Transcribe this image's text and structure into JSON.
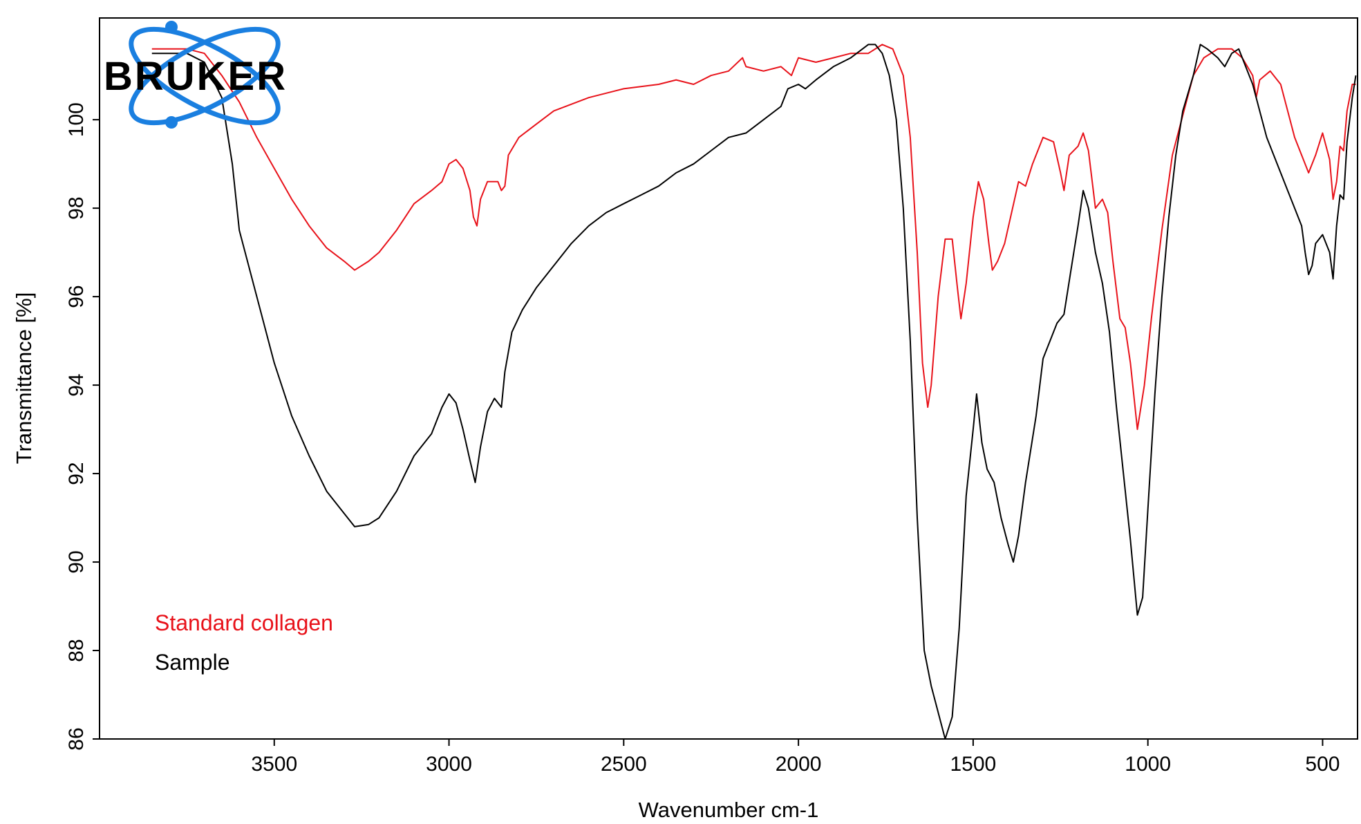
{
  "chart_data": {
    "type": "line",
    "xlabel": "Wavenumber cm-1",
    "ylabel": "Transmittance [%]",
    "xlim": [
      4000,
      400
    ],
    "x_reversed": true,
    "ylim": [
      86,
      102.3
    ],
    "x_ticks": [
      3500,
      3000,
      2500,
      2000,
      1500,
      1000,
      500
    ],
    "y_ticks": [
      86,
      88,
      90,
      92,
      94,
      96,
      98,
      100
    ],
    "grid": false,
    "legend_placement": "bottom-left",
    "colors": {
      "standard": "#e8121a",
      "sample": "#000000",
      "logo": "#1a7fe0"
    },
    "logo_text": "BRUKER",
    "series": [
      {
        "name": "Standard collagen",
        "color": "#e8121a",
        "points": [
          [
            3850,
            101.6
          ],
          [
            3750,
            101.6
          ],
          [
            3700,
            101.5
          ],
          [
            3650,
            101.0
          ],
          [
            3600,
            100.4
          ],
          [
            3550,
            99.6
          ],
          [
            3500,
            98.9
          ],
          [
            3450,
            98.2
          ],
          [
            3400,
            97.6
          ],
          [
            3350,
            97.1
          ],
          [
            3300,
            96.8
          ],
          [
            3270,
            96.6
          ],
          [
            3230,
            96.8
          ],
          [
            3200,
            97.0
          ],
          [
            3150,
            97.5
          ],
          [
            3100,
            98.1
          ],
          [
            3050,
            98.4
          ],
          [
            3020,
            98.6
          ],
          [
            3000,
            99.0
          ],
          [
            2980,
            99.1
          ],
          [
            2960,
            98.9
          ],
          [
            2940,
            98.4
          ],
          [
            2930,
            97.8
          ],
          [
            2920,
            97.6
          ],
          [
            2910,
            98.2
          ],
          [
            2890,
            98.6
          ],
          [
            2860,
            98.6
          ],
          [
            2850,
            98.4
          ],
          [
            2840,
            98.5
          ],
          [
            2830,
            99.2
          ],
          [
            2800,
            99.6
          ],
          [
            2750,
            99.9
          ],
          [
            2700,
            100.2
          ],
          [
            2600,
            100.5
          ],
          [
            2500,
            100.7
          ],
          [
            2400,
            100.8
          ],
          [
            2350,
            100.9
          ],
          [
            2300,
            100.8
          ],
          [
            2250,
            101.0
          ],
          [
            2200,
            101.1
          ],
          [
            2160,
            101.4
          ],
          [
            2150,
            101.2
          ],
          [
            2100,
            101.1
          ],
          [
            2050,
            101.2
          ],
          [
            2020,
            101.0
          ],
          [
            2000,
            101.4
          ],
          [
            1950,
            101.3
          ],
          [
            1900,
            101.4
          ],
          [
            1850,
            101.5
          ],
          [
            1800,
            101.5
          ],
          [
            1760,
            101.7
          ],
          [
            1730,
            101.6
          ],
          [
            1700,
            101.0
          ],
          [
            1680,
            99.6
          ],
          [
            1660,
            97.0
          ],
          [
            1645,
            94.5
          ],
          [
            1630,
            93.5
          ],
          [
            1620,
            94.0
          ],
          [
            1600,
            96.0
          ],
          [
            1580,
            97.3
          ],
          [
            1560,
            97.3
          ],
          [
            1545,
            96.2
          ],
          [
            1535,
            95.5
          ],
          [
            1520,
            96.3
          ],
          [
            1500,
            97.8
          ],
          [
            1485,
            98.6
          ],
          [
            1470,
            98.2
          ],
          [
            1455,
            97.2
          ],
          [
            1445,
            96.6
          ],
          [
            1430,
            96.8
          ],
          [
            1410,
            97.2
          ],
          [
            1390,
            97.9
          ],
          [
            1370,
            98.6
          ],
          [
            1350,
            98.5
          ],
          [
            1330,
            99.0
          ],
          [
            1300,
            99.6
          ],
          [
            1270,
            99.5
          ],
          [
            1250,
            98.8
          ],
          [
            1240,
            98.4
          ],
          [
            1225,
            99.2
          ],
          [
            1200,
            99.4
          ],
          [
            1185,
            99.7
          ],
          [
            1170,
            99.3
          ],
          [
            1150,
            98.0
          ],
          [
            1130,
            98.2
          ],
          [
            1115,
            97.9
          ],
          [
            1100,
            96.8
          ],
          [
            1080,
            95.5
          ],
          [
            1065,
            95.3
          ],
          [
            1050,
            94.5
          ],
          [
            1030,
            93.0
          ],
          [
            1010,
            94.0
          ],
          [
            990,
            95.5
          ],
          [
            960,
            97.5
          ],
          [
            930,
            99.2
          ],
          [
            900,
            100.1
          ],
          [
            870,
            101.0
          ],
          [
            840,
            101.4
          ],
          [
            800,
            101.6
          ],
          [
            760,
            101.6
          ],
          [
            730,
            101.4
          ],
          [
            700,
            101.0
          ],
          [
            690,
            100.5
          ],
          [
            680,
            100.9
          ],
          [
            650,
            101.1
          ],
          [
            620,
            100.8
          ],
          [
            600,
            100.2
          ],
          [
            580,
            99.6
          ],
          [
            560,
            99.2
          ],
          [
            540,
            98.8
          ],
          [
            520,
            99.2
          ],
          [
            500,
            99.7
          ],
          [
            480,
            99.1
          ],
          [
            470,
            98.2
          ],
          [
            460,
            98.6
          ],
          [
            450,
            99.4
          ],
          [
            440,
            99.3
          ],
          [
            430,
            100.2
          ],
          [
            415,
            100.8
          ],
          [
            405,
            100.8
          ]
        ]
      },
      {
        "name": "Sample",
        "color": "#000000",
        "points": [
          [
            3850,
            101.5
          ],
          [
            3750,
            101.5
          ],
          [
            3700,
            101.3
          ],
          [
            3650,
            100.5
          ],
          [
            3620,
            99.0
          ],
          [
            3600,
            97.5
          ],
          [
            3550,
            96.0
          ],
          [
            3500,
            94.5
          ],
          [
            3450,
            93.3
          ],
          [
            3400,
            92.4
          ],
          [
            3350,
            91.6
          ],
          [
            3300,
            91.1
          ],
          [
            3270,
            90.8
          ],
          [
            3230,
            90.85
          ],
          [
            3200,
            91.0
          ],
          [
            3150,
            91.6
          ],
          [
            3100,
            92.4
          ],
          [
            3050,
            92.9
          ],
          [
            3020,
            93.5
          ],
          [
            3000,
            93.8
          ],
          [
            2980,
            93.6
          ],
          [
            2960,
            93.0
          ],
          [
            2940,
            92.3
          ],
          [
            2925,
            91.8
          ],
          [
            2910,
            92.6
          ],
          [
            2890,
            93.4
          ],
          [
            2870,
            93.7
          ],
          [
            2850,
            93.5
          ],
          [
            2840,
            94.3
          ],
          [
            2820,
            95.2
          ],
          [
            2790,
            95.7
          ],
          [
            2750,
            96.2
          ],
          [
            2700,
            96.7
          ],
          [
            2650,
            97.2
          ],
          [
            2600,
            97.6
          ],
          [
            2550,
            97.9
          ],
          [
            2500,
            98.1
          ],
          [
            2450,
            98.3
          ],
          [
            2400,
            98.5
          ],
          [
            2350,
            98.8
          ],
          [
            2300,
            99.0
          ],
          [
            2250,
            99.3
          ],
          [
            2200,
            99.6
          ],
          [
            2150,
            99.7
          ],
          [
            2100,
            100.0
          ],
          [
            2050,
            100.3
          ],
          [
            2030,
            100.7
          ],
          [
            2000,
            100.8
          ],
          [
            1980,
            100.7
          ],
          [
            1950,
            100.9
          ],
          [
            1900,
            101.2
          ],
          [
            1850,
            101.4
          ],
          [
            1800,
            101.7
          ],
          [
            1780,
            101.7
          ],
          [
            1760,
            101.5
          ],
          [
            1740,
            101.0
          ],
          [
            1720,
            100.0
          ],
          [
            1700,
            98.0
          ],
          [
            1680,
            95.0
          ],
          [
            1660,
            91.0
          ],
          [
            1640,
            88.0
          ],
          [
            1620,
            87.2
          ],
          [
            1600,
            86.6
          ],
          [
            1580,
            86.0
          ],
          [
            1560,
            86.5
          ],
          [
            1540,
            88.5
          ],
          [
            1520,
            91.5
          ],
          [
            1500,
            93.0
          ],
          [
            1490,
            93.8
          ],
          [
            1475,
            92.7
          ],
          [
            1460,
            92.1
          ],
          [
            1440,
            91.8
          ],
          [
            1420,
            91.0
          ],
          [
            1400,
            90.4
          ],
          [
            1385,
            90.0
          ],
          [
            1370,
            90.6
          ],
          [
            1350,
            91.8
          ],
          [
            1320,
            93.3
          ],
          [
            1300,
            94.6
          ],
          [
            1280,
            95.0
          ],
          [
            1260,
            95.4
          ],
          [
            1240,
            95.6
          ],
          [
            1220,
            96.6
          ],
          [
            1200,
            97.6
          ],
          [
            1185,
            98.4
          ],
          [
            1170,
            98.0
          ],
          [
            1150,
            97.0
          ],
          [
            1130,
            96.3
          ],
          [
            1110,
            95.2
          ],
          [
            1090,
            93.5
          ],
          [
            1070,
            92.0
          ],
          [
            1050,
            90.5
          ],
          [
            1030,
            88.8
          ],
          [
            1015,
            89.2
          ],
          [
            1000,
            91.2
          ],
          [
            980,
            93.8
          ],
          [
            960,
            96.0
          ],
          [
            940,
            97.8
          ],
          [
            920,
            99.2
          ],
          [
            900,
            100.2
          ],
          [
            870,
            101.0
          ],
          [
            850,
            101.7
          ],
          [
            830,
            101.6
          ],
          [
            800,
            101.4
          ],
          [
            780,
            101.2
          ],
          [
            760,
            101.5
          ],
          [
            740,
            101.6
          ],
          [
            720,
            101.2
          ],
          [
            700,
            100.8
          ],
          [
            680,
            100.2
          ],
          [
            660,
            99.6
          ],
          [
            640,
            99.2
          ],
          [
            620,
            98.8
          ],
          [
            600,
            98.4
          ],
          [
            580,
            98.0
          ],
          [
            560,
            97.6
          ],
          [
            550,
            97.0
          ],
          [
            540,
            96.5
          ],
          [
            530,
            96.7
          ],
          [
            520,
            97.2
          ],
          [
            500,
            97.4
          ],
          [
            480,
            97.0
          ],
          [
            470,
            96.4
          ],
          [
            460,
            97.6
          ],
          [
            450,
            98.3
          ],
          [
            440,
            98.2
          ],
          [
            430,
            99.5
          ],
          [
            415,
            100.5
          ],
          [
            405,
            101.0
          ]
        ]
      }
    ]
  }
}
